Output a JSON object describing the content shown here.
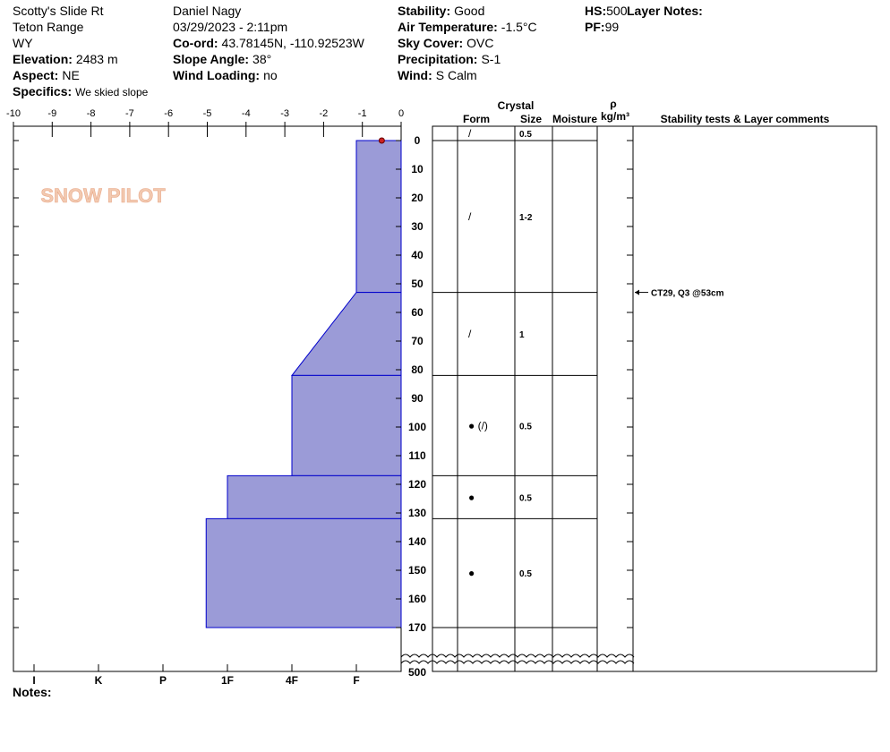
{
  "header": {
    "columns": [
      [
        {
          "value": "Scotty's Slide Rt"
        },
        {
          "value": "Teton Range"
        },
        {
          "value": "WY"
        },
        {
          "label": "Elevation:",
          "value": "2483 m"
        },
        {
          "label": "Aspect:",
          "value": "NE"
        },
        {
          "label": "Specifics:",
          "value": "We skied slope"
        }
      ],
      [
        {
          "value": "Daniel Nagy"
        },
        {
          "value": "03/29/2023 - 2:11pm"
        },
        {
          "label": "Co-ord:",
          "value": "43.78145N, -110.92523W"
        },
        {
          "label": "Slope Angle:",
          "value": "38°"
        },
        {
          "label": "Wind Loading:",
          "value": "no"
        }
      ],
      [
        {
          "label": "Stability:",
          "value": "Good"
        },
        {
          "label": "Air Temperature:",
          "value": "-1.5°C"
        },
        {
          "label": "Sky Cover:",
          "value": "OVC"
        },
        {
          "label": "Precipitation:",
          "value": "S-1"
        },
        {
          "label": "Wind:",
          "value": "S Calm"
        }
      ],
      [
        {
          "label": "HS:",
          "value": "500"
        },
        {
          "label": "PF:",
          "value": "99"
        }
      ],
      [
        {
          "label": "Layer Notes:"
        }
      ]
    ]
  },
  "logo": "SNOW PILOT",
  "notes_label": "Notes:",
  "chart_data": {
    "type": "snowpit",
    "xlim": [
      -10,
      0
    ],
    "xticks": [
      -10,
      -9,
      -8,
      -7,
      -6,
      -5,
      -4,
      -3,
      -2,
      -1,
      0
    ],
    "ylim": [
      -5,
      170
    ],
    "yticks": [
      0,
      10,
      20,
      30,
      40,
      50,
      60,
      70,
      80,
      90,
      100,
      110,
      120,
      130,
      140,
      150,
      160,
      170
    ],
    "hs_tick": 500,
    "hardness_ticks": [
      {
        "value": 6,
        "label": "I"
      },
      {
        "value": 5,
        "label": "K"
      },
      {
        "value": 4,
        "label": "P"
      },
      {
        "value": 3,
        "label": "1F"
      },
      {
        "value": 2,
        "label": "4F"
      },
      {
        "value": 1,
        "label": "F"
      }
    ],
    "temperatures": [
      {
        "depth": 0,
        "temp": -0.5
      }
    ],
    "layers": [
      {
        "top": 0,
        "bottom": 53,
        "hardness_top": 1,
        "hardness_bottom": 1
      },
      {
        "top": 53,
        "bottom": 82,
        "hardness_top": 1,
        "hardness_bottom": 2
      },
      {
        "top": 82,
        "bottom": 117,
        "hardness_top": 2,
        "hardness_bottom": 2
      },
      {
        "top": 117,
        "bottom": 132,
        "hardness_top": 3,
        "hardness_bottom": 3
      },
      {
        "top": 132,
        "bottom": 170,
        "hardness_top": 3.33,
        "hardness_bottom": 3.33
      }
    ],
    "crystal_rows": [
      {
        "top": -5,
        "bottom": 0,
        "form": "/",
        "size": "0.5"
      },
      {
        "top": 0,
        "bottom": 53,
        "form": "/",
        "size": "1-2"
      },
      {
        "top": 53,
        "bottom": 82,
        "form": "/",
        "size": "1"
      },
      {
        "top": 82,
        "bottom": 117,
        "form": "● (/)",
        "size": "0.5"
      },
      {
        "top": 117,
        "bottom": 132,
        "form": "●",
        "size": "0.5"
      },
      {
        "top": 132,
        "bottom": 170,
        "form": "●",
        "size": "0.5"
      }
    ],
    "stability_tests": [
      {
        "depth": 53,
        "label": "CT29, Q3 @53cm"
      }
    ],
    "columns": {
      "crystal": "Crystal",
      "form": "Form",
      "size": "Size",
      "moisture": "Moisture",
      "density_symbol": "ρ",
      "density_unit": "kg/m³",
      "comments": "Stability tests & Layer comments"
    },
    "hardness_color": "#9b9bd7",
    "layer_line_color": "#0000cc",
    "temp_color": "#cc2222"
  }
}
